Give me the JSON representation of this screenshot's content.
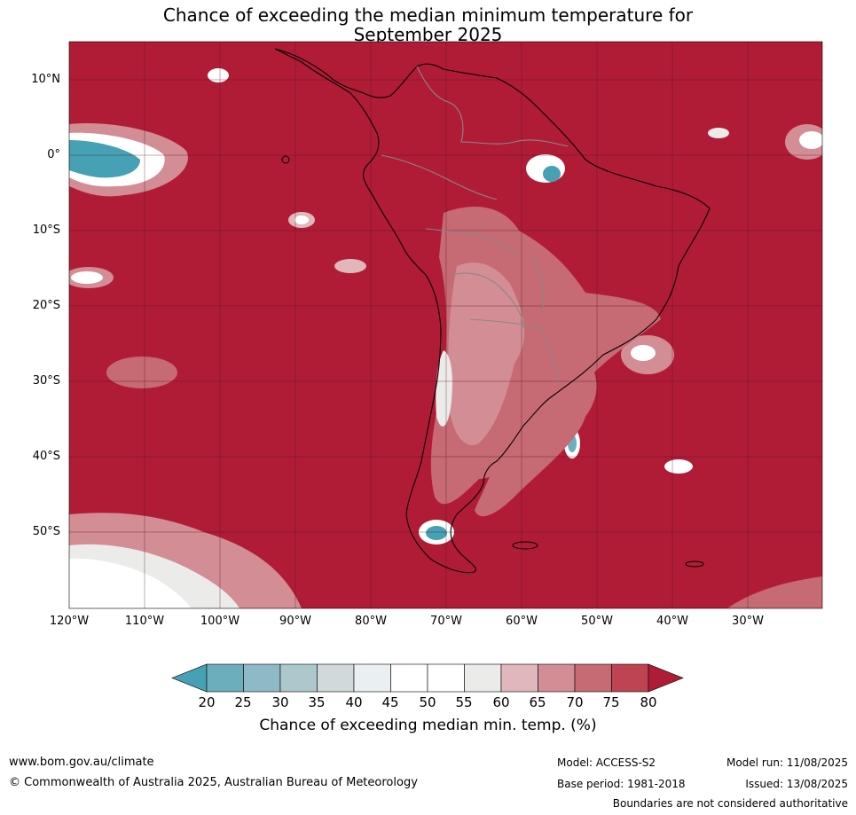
{
  "title": {
    "line1": "Chance of exceeding the median minimum temperature for",
    "line2": "September 2025"
  },
  "map": {
    "lat_labels": [
      "10°N",
      "0°",
      "10°S",
      "20°S",
      "30°S",
      "40°S",
      "50°S"
    ],
    "lon_labels": [
      "120°W",
      "110°W",
      "100°W",
      "90°W",
      "80°W",
      "70°W",
      "60°W",
      "50°W",
      "40°W",
      "30°W"
    ],
    "extent": {
      "lon_min": -120,
      "lon_max": -20,
      "lat_min": -60,
      "lat_max": 15
    },
    "background_color": "#b01c36"
  },
  "colorbar": {
    "ticks": [
      "20",
      "25",
      "30",
      "35",
      "40",
      "45",
      "50",
      "55",
      "60",
      "65",
      "70",
      "75",
      "80"
    ],
    "colors": [
      "#46a1b5",
      "#6daebc",
      "#8eb9c6",
      "#adc8cc",
      "#d2d9db",
      "#eaf0f2",
      "#ffffff",
      "#ffffff",
      "#ebebea",
      "#e0b7bb",
      "#d38d94",
      "#c66a73",
      "#bf4452",
      "#b01c36"
    ],
    "label": "Chance of exceeding median min. temp. (%)"
  },
  "footer": {
    "url": "www.bom.gov.au/climate",
    "copyright": "© Commonwealth of Australia 2025, Australian Bureau of Meteorology",
    "model": "Model: ACCESS-S2",
    "base_period": "Base period: 1981-2018",
    "model_run": "Model run: 11/08/2025",
    "issued": "Issued: 13/08/2025",
    "boundaries": "Boundaries are not considered authoritative"
  }
}
